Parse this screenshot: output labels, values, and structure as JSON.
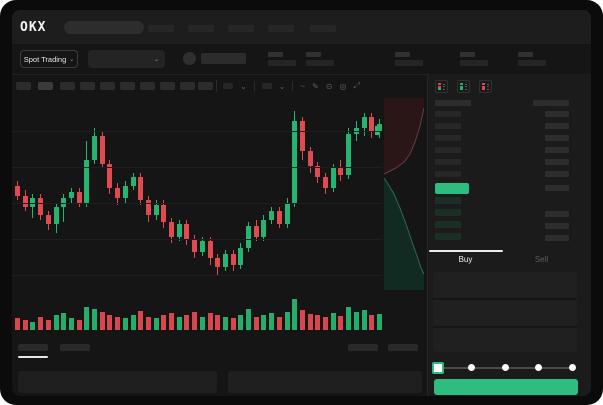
{
  "header": {
    "logo_text": "OKX",
    "nav_item_count": 5
  },
  "market_bar": {
    "mode_selector_label": "Spot Trading",
    "chevron": "⌄",
    "ticker_stat_count": 5
  },
  "chart_toolbar": {
    "timeframe_count": 10,
    "active_timeframe_index": 1,
    "icons": [
      {
        "name": "interval-dropdown-chevron",
        "glyph": "⌄"
      },
      {
        "name": "indicator-dropdown-chevron",
        "glyph": "⌄"
      },
      {
        "name": "line-type-icon",
        "glyph": "~"
      },
      {
        "name": "draw-tool-icon",
        "glyph": "✎"
      },
      {
        "name": "screenshot-icon",
        "glyph": "⊙"
      },
      {
        "name": "settings-icon",
        "glyph": "◎"
      },
      {
        "name": "fullscreen-icon",
        "glyph": "⤢"
      }
    ]
  },
  "chart_data": {
    "type": "candlestick",
    "title": "",
    "x_axis_labels_visible": false,
    "y_axis_labels_visible": false,
    "grid": "horizontal-faint",
    "ylim": [
      15,
      102
    ],
    "up_color": "#26b571",
    "down_color": "#e04b51",
    "candles": [
      [
        62,
        64,
        55,
        57
      ],
      [
        57,
        60,
        50,
        52
      ],
      [
        52,
        58,
        47,
        56
      ],
      [
        56,
        58,
        46,
        48
      ],
      [
        48,
        50,
        41,
        44
      ],
      [
        44,
        54,
        40,
        52
      ],
      [
        52,
        58,
        45,
        56
      ],
      [
        56,
        61,
        54,
        59
      ],
      [
        59,
        61,
        52,
        54
      ],
      [
        54,
        83,
        52,
        74
      ],
      [
        74,
        89,
        72,
        85
      ],
      [
        85,
        87,
        70,
        72
      ],
      [
        72,
        74,
        58,
        61
      ],
      [
        61,
        63,
        53,
        56
      ],
      [
        56,
        64,
        54,
        62
      ],
      [
        62,
        68,
        60,
        66
      ],
      [
        66,
        68,
        53,
        55
      ],
      [
        55,
        57,
        45,
        48
      ],
      [
        48,
        55,
        46,
        53
      ],
      [
        53,
        55,
        42,
        45
      ],
      [
        45,
        47,
        35,
        38
      ],
      [
        38,
        46,
        36,
        44
      ],
      [
        44,
        46,
        34,
        37
      ],
      [
        37,
        39,
        28,
        31
      ],
      [
        31,
        38,
        29,
        36
      ],
      [
        36,
        38,
        25,
        28
      ],
      [
        28,
        30,
        20,
        24
      ],
      [
        24,
        32,
        22,
        30
      ],
      [
        30,
        32,
        22,
        25
      ],
      [
        25,
        35,
        23,
        33
      ],
      [
        33,
        45,
        31,
        43
      ],
      [
        43,
        46,
        36,
        38
      ],
      [
        38,
        48,
        36,
        46
      ],
      [
        46,
        52,
        44,
        50
      ],
      [
        50,
        52,
        42,
        44
      ],
      [
        44,
        56,
        42,
        54
      ],
      [
        54,
        97,
        52,
        92
      ],
      [
        92,
        94,
        74,
        78
      ],
      [
        78,
        80,
        68,
        71
      ],
      [
        71,
        73,
        63,
        66
      ],
      [
        66,
        68,
        58,
        61
      ],
      [
        61,
        72,
        59,
        70
      ],
      [
        70,
        74,
        64,
        67
      ],
      [
        67,
        89,
        65,
        86
      ],
      [
        86,
        92,
        83,
        89
      ],
      [
        89,
        96,
        85,
        94
      ],
      [
        94,
        96,
        84,
        87
      ],
      [
        87,
        93,
        84,
        91
      ]
    ],
    "volumes": [
      38,
      32,
      26,
      42,
      30,
      46,
      52,
      36,
      30,
      72,
      66,
      56,
      46,
      40,
      36,
      46,
      60,
      42,
      36,
      46,
      52,
      40,
      46,
      56,
      40,
      52,
      46,
      40,
      36,
      46,
      66,
      42,
      46,
      52,
      40,
      56,
      98,
      62,
      50,
      46,
      40,
      52,
      44,
      72,
      56,
      62,
      46,
      50
    ],
    "depth_overlay": {
      "type": "depth",
      "orientation": "vertical",
      "asks_fill": "#2a1517",
      "bids_fill": "#112b22",
      "asks_line": "#6e3a3c",
      "bids_line": "#2d6b52"
    }
  },
  "orderbook": {
    "view_modes": [
      "all",
      "bids",
      "asks"
    ],
    "ask_row_count": 6,
    "bid_row_count": 4,
    "price_highlight_color": "#2ebd7f"
  },
  "trade_panel": {
    "tabs": [
      {
        "label": "Buy",
        "active": true
      },
      {
        "label": "Sell",
        "active": false
      }
    ],
    "field_count": 3,
    "slider_stop_count": 5,
    "submit_color": "#2ebd7f"
  },
  "colors": {
    "up": "#26b571",
    "down": "#e04b51",
    "accent": "#2ebd7f",
    "background": "#151515",
    "header": "#1d1d1d",
    "panel": "#1b1b1b"
  }
}
